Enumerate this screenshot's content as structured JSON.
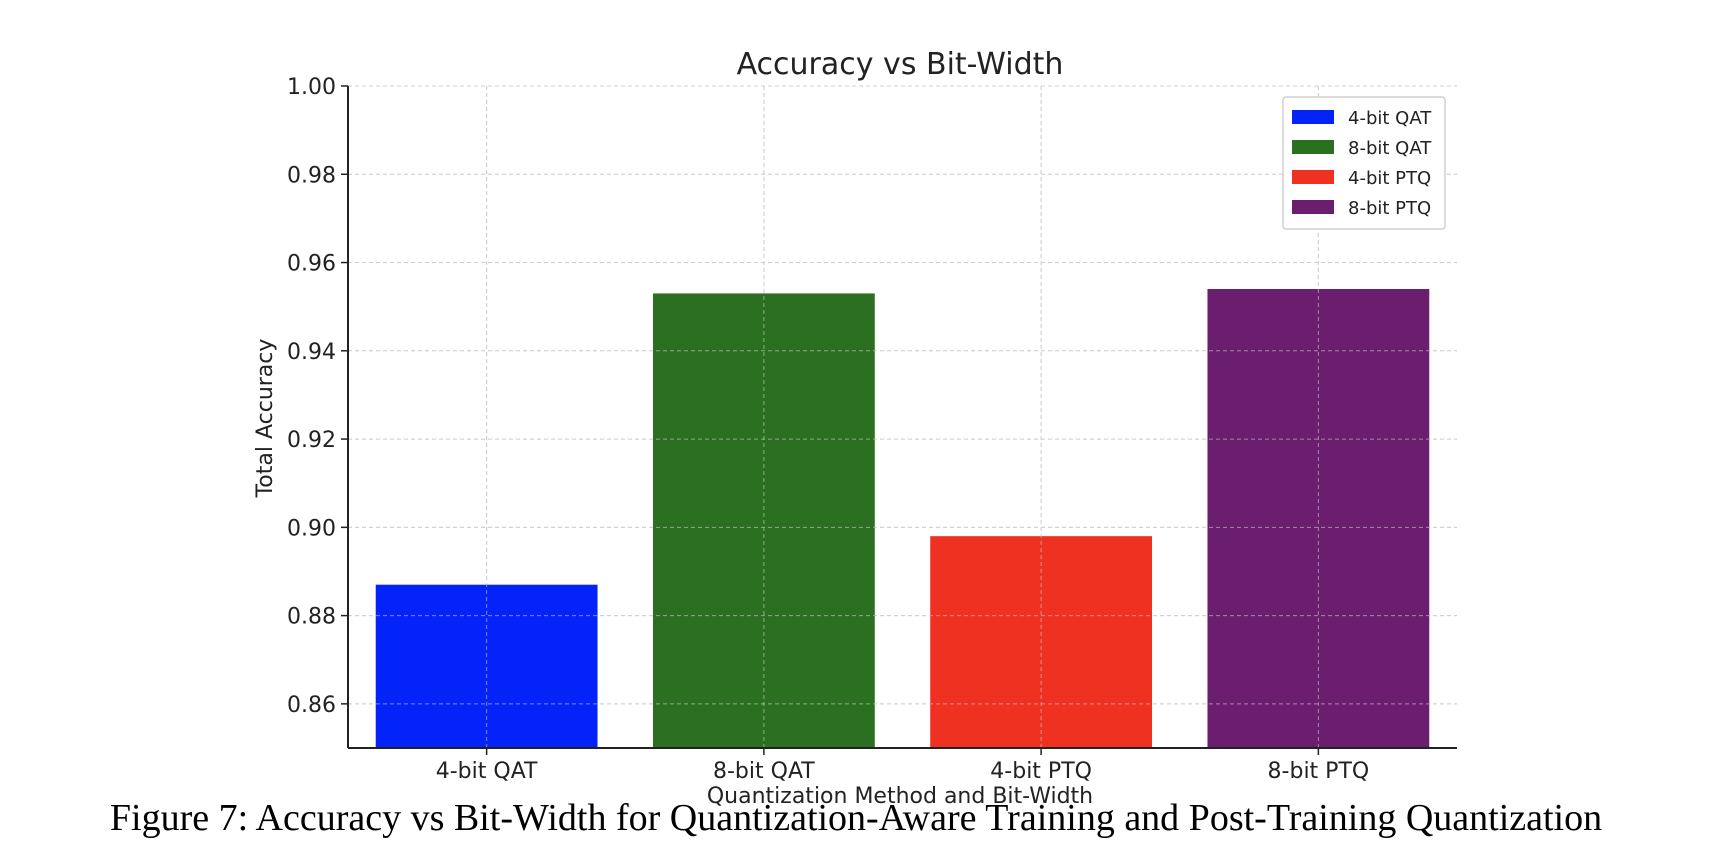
{
  "caption": "Figure 7: Accuracy vs Bit-Width for Quantization-Aware Training and Post-Training Quantization",
  "chart_data": {
    "type": "bar",
    "title": "Accuracy vs Bit-Width",
    "xlabel": "Quantization Method and Bit-Width",
    "ylabel": "Total Accuracy",
    "categories": [
      "4-bit QAT",
      "8-bit QAT",
      "4-bit PTQ",
      "8-bit PTQ"
    ],
    "values": [
      0.887,
      0.953,
      0.898,
      0.954
    ],
    "colors": [
      "#0323f8",
      "#2b7020",
      "#ef3122",
      "#6b1e6e"
    ],
    "ylim": [
      0.85,
      1.0
    ],
    "yticks": [
      0.86,
      0.88,
      0.9,
      0.92,
      0.94,
      0.96,
      0.98,
      1.0
    ],
    "ytick_labels": [
      "0.86",
      "0.88",
      "0.90",
      "0.92",
      "0.94",
      "0.96",
      "0.98",
      "1.00"
    ],
    "grid": true,
    "legend": {
      "position": "top-right",
      "entries": [
        "4-bit QAT",
        "8-bit QAT",
        "4-bit PTQ",
        "8-bit PTQ"
      ]
    }
  }
}
